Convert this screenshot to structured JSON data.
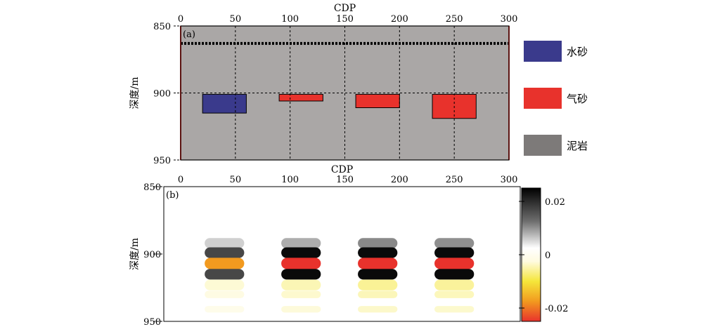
{
  "chart_data": [
    {
      "panel": "(a)",
      "type": "heatmap",
      "xlabel": "CDP",
      "ylabel": "深度/m",
      "xlim": [
        0,
        300
      ],
      "ylim": [
        950,
        850
      ],
      "xticks": [
        "0",
        "50",
        "100",
        "150",
        "200",
        "250",
        "300"
      ],
      "yticks": [
        "850",
        "900",
        "950"
      ],
      "grid": true,
      "legend": [
        {
          "label": "水砂",
          "color": "#3a3a8c"
        },
        {
          "label": "气砂",
          "color": "#e8322c"
        },
        {
          "label": "泥岩",
          "color": "#7d7a79"
        }
      ],
      "background": {
        "label": "泥岩",
        "color": "#aaa7a6",
        "x": [
          0,
          300
        ],
        "depth": [
          850,
          950
        ]
      },
      "bodies": [
        {
          "label": "水砂",
          "x": [
            20,
            60
          ],
          "depth": [
            901,
            915
          ],
          "color": "#3a3a8c"
        },
        {
          "label": "气砂",
          "x": [
            90,
            130
          ],
          "depth": [
            901,
            906
          ],
          "color": "#e8322c"
        },
        {
          "label": "气砂",
          "x": [
            160,
            200
          ],
          "depth": [
            901,
            911
          ],
          "color": "#e8322c"
        },
        {
          "label": "气砂",
          "x": [
            230,
            270
          ],
          "depth": [
            901,
            919
          ],
          "color": "#e8322c"
        }
      ],
      "receiver_line_depth": 863,
      "boundary_x": [
        0,
        300
      ],
      "boundary_color": "#e8322c"
    },
    {
      "panel": "(b)",
      "type": "heatmap",
      "xlabel": "CDP",
      "ylabel": "深度/m",
      "xlim": [
        0,
        300
      ],
      "ylim": [
        950,
        850
      ],
      "xticks": [
        "0",
        "50",
        "100",
        "150",
        "200",
        "250",
        "300"
      ],
      "yticks": [
        "850",
        "900",
        "950"
      ],
      "colorbar": {
        "ticks": [
          "0.02",
          "0",
          "-0.02"
        ],
        "range": [
          -0.025,
          0.025
        ],
        "colors": [
          "#000000",
          "#ffffff",
          "#f5e63a",
          "#e8322c"
        ]
      },
      "wavelets": [
        {
          "x": [
            20,
            60
          ],
          "amplitude": 0.4
        },
        {
          "x": [
            90,
            130
          ],
          "amplitude": 0.7
        },
        {
          "x": [
            160,
            200
          ],
          "amplitude": 1.0
        },
        {
          "x": [
            230,
            270
          ],
          "amplitude": 0.95
        }
      ],
      "wavelet_rows": [
        {
          "depth": 892,
          "value": 0.012,
          "t": 3.5
        },
        {
          "depth": 899,
          "value": 0.025,
          "t": 3.6
        },
        {
          "depth": 907,
          "value": -0.025,
          "t": 3.8
        },
        {
          "depth": 915,
          "value": 0.025,
          "t": 3.6
        },
        {
          "depth": 923,
          "value": -0.006,
          "t": 3.6
        },
        {
          "depth": 930,
          "value": -0.004,
          "t": 2.5
        },
        {
          "depth": 941,
          "value": -0.003,
          "t": 2.2
        }
      ]
    }
  ]
}
